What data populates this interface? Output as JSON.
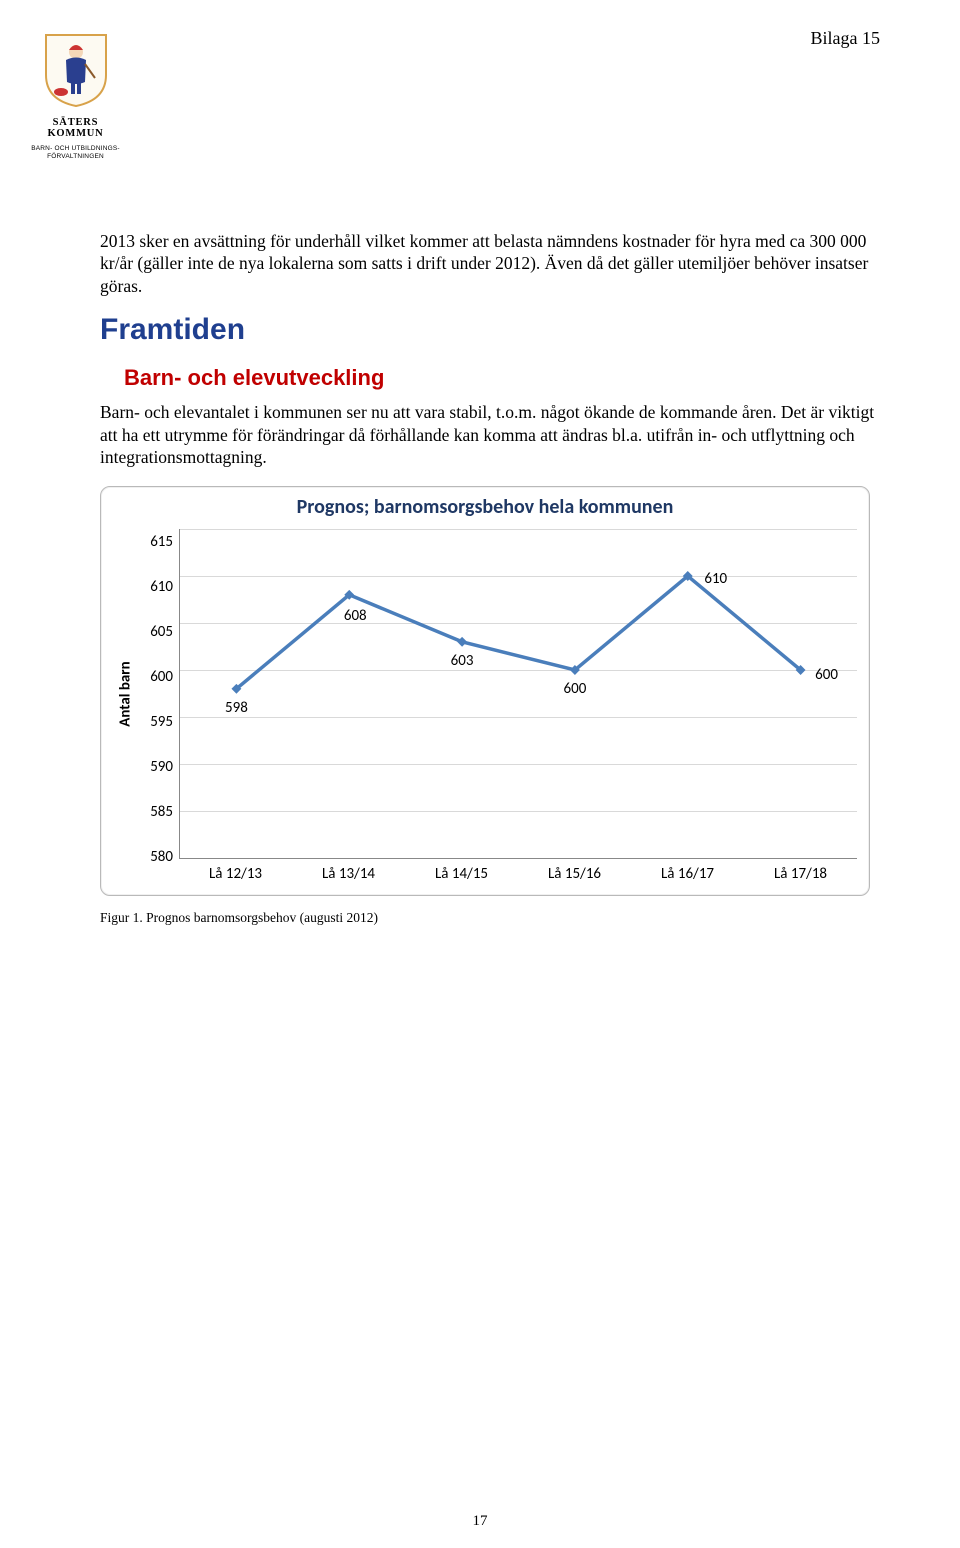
{
  "header": {
    "annex": "Bilaga 15"
  },
  "logo": {
    "name": "SÄTERS KOMMUN",
    "subline": "BARN- OCH UTBILDNINGS-\nFÖRVALTNINGEN",
    "colors": {
      "shield_border": "#d8a24a",
      "shield_fill": "#fdfaf2",
      "figure": "#2a3f8f",
      "accent": "#c33"
    }
  },
  "body": {
    "para1": "2013 sker en avsättning för underhåll vilket kommer att belasta nämndens kostnader för hyra med ca 300 000 kr/år (gäller inte de nya lokalerna som satts i drift under 2012). Även då det gäller utemiljöer behöver insatser göras.",
    "h1": "Framtiden",
    "h2": "Barn- och elevutveckling",
    "para2": "Barn- och elevantalet i kommunen ser nu att vara stabil, t.o.m. något ökande de kommande åren. Det är viktigt att ha ett utrymme för förändringar då förhållande kan komma att ändras bl.a. utifrån in- och utflyttning och integrationsmottagning.",
    "caption": "Figur 1. Prognos barnomsorgsbehov (augusti 2012)"
  },
  "colors": {
    "h1": "#1f3f8f",
    "h2": "#c00000",
    "chart_title": "#1f3864"
  },
  "chart": {
    "type": "line",
    "title": "Prognos; barnomsorgsbehov hela kommunen",
    "title_fontsize": 20,
    "ylabel": "Antal barn",
    "label_fontsize": 15,
    "categories": [
      "Lå 12/13",
      "Lå 13/14",
      "Lå 14/15",
      "Lå 15/16",
      "Lå 16/17",
      "Lå 17/18"
    ],
    "values": [
      598,
      608,
      603,
      600,
      610,
      600
    ],
    "data_labels": [
      "598",
      "608",
      "603",
      "600",
      "610",
      "600"
    ],
    "ylim": [
      580,
      615
    ],
    "ytick_step": 5,
    "yticks": [
      615,
      610,
      605,
      600,
      595,
      590,
      585,
      580
    ],
    "line_color": "#4a7ebb",
    "line_width": 3.5,
    "marker_color": "#4a7ebb",
    "marker_size": 7,
    "grid_color": "#d9d9d9",
    "axis_color": "#888888",
    "background_color": "#ffffff",
    "tick_fontsize": 15,
    "data_label_fontsize": 15,
    "frame_border_color": "#b9b9b9"
  },
  "page_number": "17"
}
